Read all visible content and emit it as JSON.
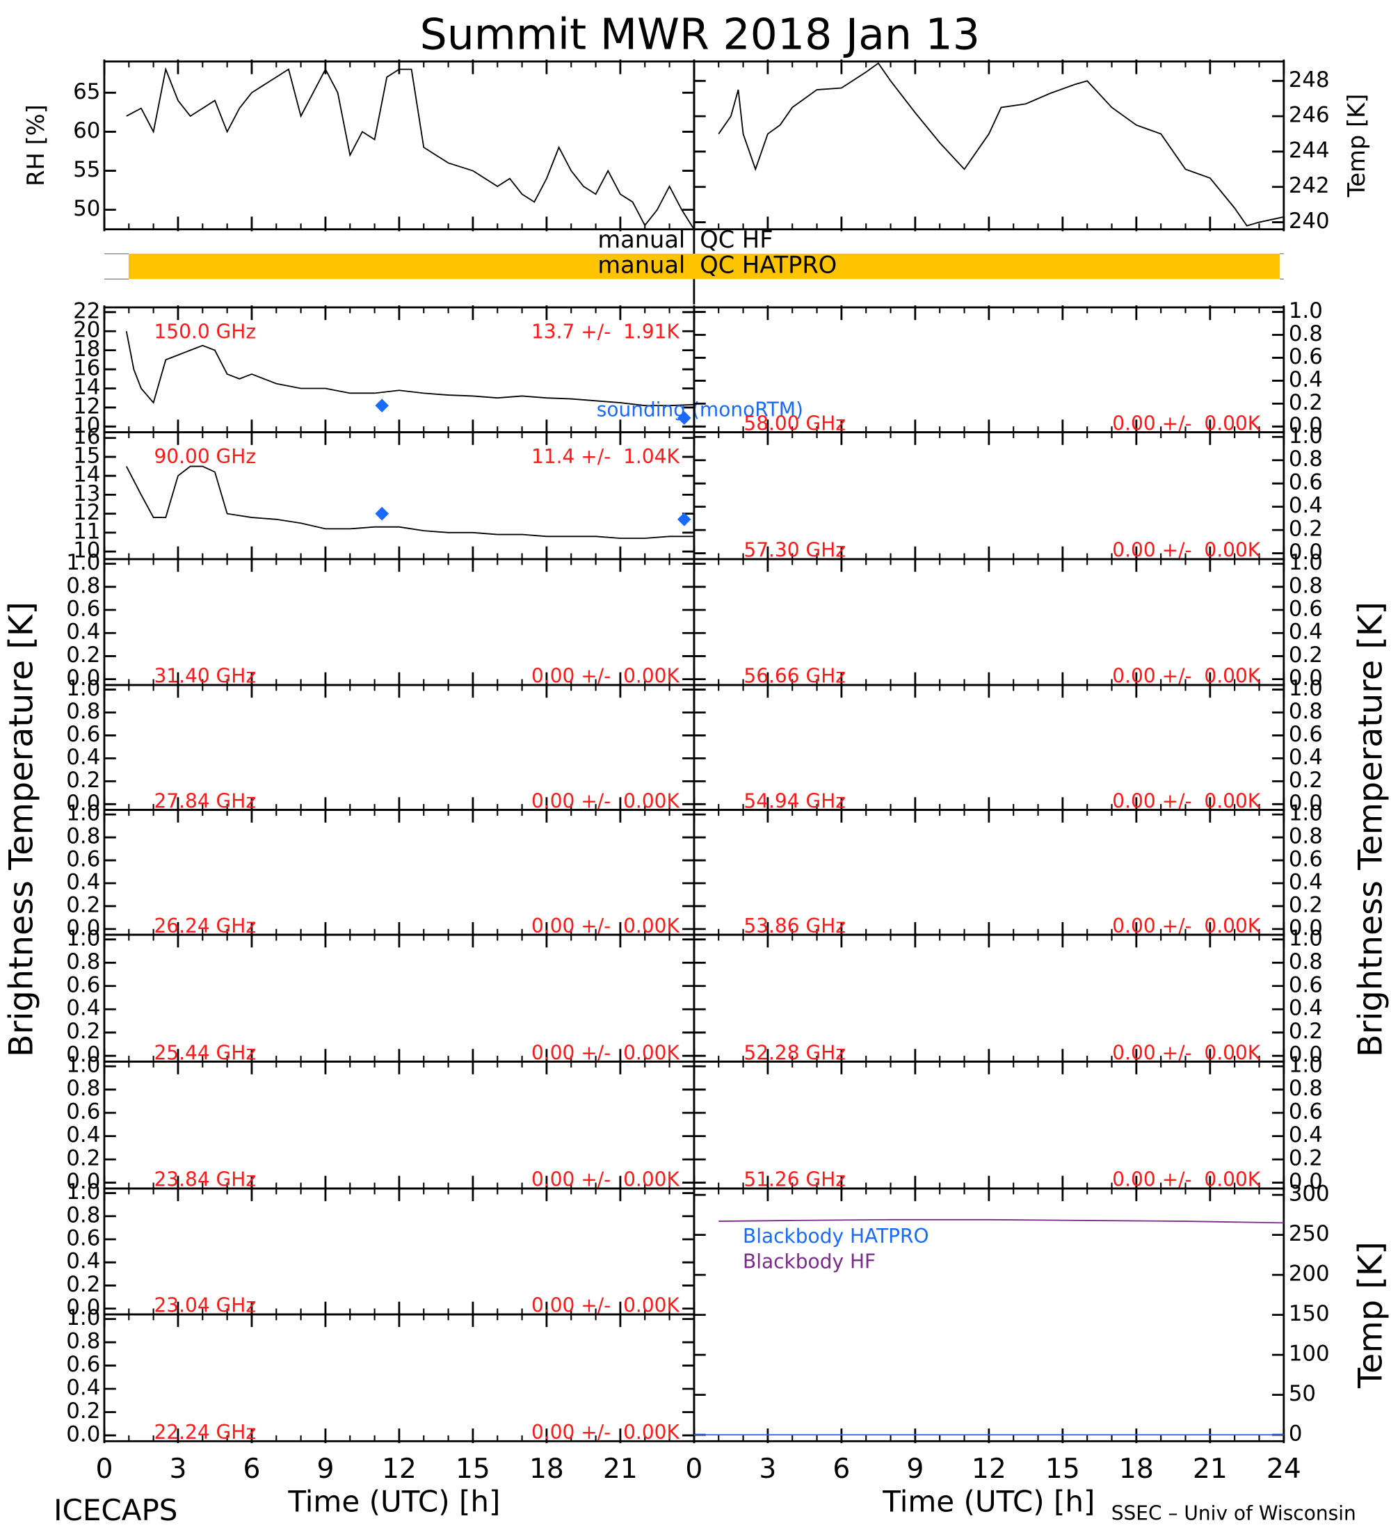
{
  "figure": {
    "title": "Summit MWR 2018 Jan 13",
    "ylabel_left": "Brightness Temperature [K]",
    "ylabel_right": "Brightness Temperature [K]",
    "footer_left": "ICECAPS",
    "footer_right": "SSEC – Univ of Wisconsin"
  },
  "qc": [
    {
      "source": "manual",
      "name": "QC HF"
    },
    {
      "source": "manual",
      "name": "QC HATPRO",
      "color": "#ffc400"
    }
  ],
  "chart_data": [
    {
      "type": "line",
      "ylabel": "RH [%]",
      "xlim": [
        0,
        24
      ],
      "xticks": [
        0,
        3,
        6,
        9,
        12,
        15,
        18,
        21,
        24
      ],
      "ylim": [
        47.5,
        69
      ],
      "yticks": [
        50,
        55,
        60,
        65
      ],
      "x": [
        0.9,
        1.5,
        2,
        2.5,
        3,
        3.5,
        4,
        4.5,
        5,
        5.5,
        6,
        6.5,
        7,
        7.5,
        8,
        8.5,
        9,
        9.5,
        10,
        10.5,
        11,
        11.5,
        12,
        12.5,
        13,
        13.5,
        14,
        15,
        15.5,
        16,
        16.5,
        17,
        17.5,
        18,
        18.5,
        19,
        19.5,
        20,
        20.5,
        21,
        21.5,
        22,
        22.5,
        23,
        23.5,
        24
      ],
      "series": [
        {
          "color": "#000000",
          "values": [
            62,
            63,
            60,
            68,
            64,
            62,
            63,
            64,
            60,
            63,
            65,
            66,
            67,
            68,
            62,
            65,
            68,
            65,
            57,
            60,
            59,
            67,
            68,
            68,
            58,
            57,
            56,
            55,
            54,
            53,
            54,
            52,
            51,
            54,
            58,
            55,
            53,
            52,
            55,
            52,
            51,
            48,
            50,
            53,
            50,
            47.5
          ]
        }
      ]
    },
    {
      "type": "line",
      "ylabel": "Temp [K]",
      "xlim": [
        0,
        24
      ],
      "xticks": [
        0,
        3,
        6,
        9,
        12,
        15,
        18,
        21,
        24
      ],
      "ylim": [
        239.6,
        249.1
      ],
      "yticks": [
        240,
        242,
        244,
        246,
        248
      ],
      "x": [
        1,
        1.5,
        1.8,
        2,
        2.5,
        3,
        3.5,
        4,
        5,
        6,
        7,
        7.5,
        8,
        9,
        10,
        11,
        11.5,
        12,
        12.5,
        13.5,
        14.5,
        15.5,
        16,
        17,
        18,
        19,
        20,
        21,
        22,
        22.5,
        23,
        24
      ],
      "series": [
        {
          "color": "#000000",
          "values": [
            245,
            246,
            247.5,
            245,
            243,
            245,
            245.5,
            246.5,
            247.5,
            247.6,
            248.5,
            249,
            248,
            246.2,
            244.5,
            243,
            244,
            245,
            246.5,
            246.7,
            247.3,
            247.8,
            248,
            246.5,
            245.5,
            245,
            243,
            242.5,
            240.8,
            239.8,
            240,
            240.3
          ]
        }
      ]
    },
    {
      "type": "line",
      "xlim": [
        0,
        24
      ],
      "xticks": [
        0,
        3,
        6,
        9,
        12,
        15,
        18,
        21,
        24
      ],
      "ylim": [
        9.4,
        22.5
      ],
      "yticks": [
        10,
        12,
        14,
        16,
        18,
        20,
        22
      ],
      "annotations": {
        "frequency": "150.0 GHz",
        "stats": "13.7 +/-  1.91K"
      },
      "x": [
        0.9,
        1.2,
        1.5,
        2,
        2.5,
        3,
        3.5,
        4,
        4.5,
        5,
        5.5,
        6,
        7,
        8,
        9,
        10,
        11,
        12,
        13,
        14,
        15,
        16,
        17,
        18,
        19,
        20,
        21,
        22,
        23,
        24
      ],
      "series": [
        {
          "color": "#000000",
          "values": [
            20,
            16,
            14,
            12.5,
            17,
            17.5,
            18,
            18.5,
            18,
            15.5,
            15,
            15.5,
            14.5,
            14,
            14,
            13.5,
            13.5,
            13.8,
            13.5,
            13.3,
            13.2,
            13,
            13.2,
            13,
            12.9,
            12.7,
            12.5,
            12.2,
            12.2,
            12.3
          ]
        }
      ],
      "markers": {
        "name": "sounding (monoRTM)",
        "color": "#1a6aff",
        "x": [
          11.3,
          23.6
        ],
        "values": [
          12.2,
          10.9
        ]
      }
    },
    {
      "type": "line",
      "xlim": [
        0,
        24
      ],
      "xticks": [
        0,
        3,
        6,
        9,
        12,
        15,
        18,
        21,
        24
      ],
      "ylim": [
        9.6,
        16.3
      ],
      "yticks": [
        10,
        11,
        12,
        13,
        14,
        15,
        16
      ],
      "annotations": {
        "frequency": "90.00 GHz",
        "stats": "11.4 +/-  1.04K"
      },
      "x": [
        0.9,
        1.5,
        2,
        2.5,
        3,
        3.5,
        4,
        4.5,
        5,
        6,
        7,
        8,
        9,
        10,
        11,
        12,
        13,
        14,
        15,
        16,
        17,
        18,
        19,
        20,
        21,
        22,
        23,
        24
      ],
      "series": [
        {
          "color": "#000000",
          "values": [
            14.5,
            13,
            11.8,
            11.8,
            14,
            14.5,
            14.5,
            14.2,
            12,
            11.8,
            11.7,
            11.5,
            11.2,
            11.2,
            11.3,
            11.3,
            11.1,
            11,
            11,
            10.9,
            10.9,
            10.8,
            10.8,
            10.8,
            10.7,
            10.7,
            10.8,
            10.8
          ]
        }
      ],
      "markers": {
        "color": "#1a6aff",
        "x": [
          11.3,
          23.6
        ],
        "values": [
          12.0,
          11.7
        ]
      }
    },
    {
      "type": "line",
      "xlim": [
        0,
        24
      ],
      "xticks": [
        0,
        3,
        6,
        9,
        12,
        15,
        18,
        21,
        24
      ],
      "ylim": [
        -0.05,
        1.04
      ],
      "yticks": [
        {
          "value": 0,
          "label": "0.0"
        },
        0.2,
        0.4,
        0.6,
        0.8,
        {
          "value": 1,
          "label": "1.0"
        }
      ],
      "annotations": {
        "frequency": "31.40 GHz",
        "stats": "0.00 +/-  0.00K"
      }
    },
    {
      "type": "line",
      "xlim": [
        0,
        24
      ],
      "xticks": [
        0,
        3,
        6,
        9,
        12,
        15,
        18,
        21,
        24
      ],
      "ylim": [
        -0.05,
        1.04
      ],
      "yticks": [
        {
          "value": 0,
          "label": "0.0"
        },
        0.2,
        0.4,
        0.6,
        0.8,
        {
          "value": 1,
          "label": "1.0"
        }
      ],
      "annotations": {
        "frequency": "27.84 GHz",
        "stats": "0.00 +/-  0.00K"
      }
    },
    {
      "type": "line",
      "xlim": [
        0,
        24
      ],
      "xticks": [
        0,
        3,
        6,
        9,
        12,
        15,
        18,
        21,
        24
      ],
      "ylim": [
        -0.05,
        1.04
      ],
      "yticks": [
        {
          "value": 0,
          "label": "0.0"
        },
        0.2,
        0.4,
        0.6,
        0.8,
        {
          "value": 1,
          "label": "1.0"
        }
      ],
      "annotations": {
        "frequency": "26.24 GHz",
        "stats": "0.00 +/-  0.00K"
      }
    },
    {
      "type": "line",
      "xlim": [
        0,
        24
      ],
      "xticks": [
        0,
        3,
        6,
        9,
        12,
        15,
        18,
        21,
        24
      ],
      "ylim": [
        -0.05,
        1.04
      ],
      "yticks": [
        {
          "value": 0,
          "label": "0.0"
        },
        0.2,
        0.4,
        0.6,
        0.8,
        {
          "value": 1,
          "label": "1.0"
        }
      ],
      "annotations": {
        "frequency": "25.44 GHz",
        "stats": "0.00 +/-  0.00K"
      }
    },
    {
      "type": "line",
      "xlim": [
        0,
        24
      ],
      "xticks": [
        0,
        3,
        6,
        9,
        12,
        15,
        18,
        21,
        24
      ],
      "ylim": [
        -0.05,
        1.04
      ],
      "yticks": [
        {
          "value": 0,
          "label": "0.0"
        },
        0.2,
        0.4,
        0.6,
        0.8,
        {
          "value": 1,
          "label": "1.0"
        }
      ],
      "annotations": {
        "frequency": "23.84 GHz",
        "stats": "0.00 +/-  0.00K"
      }
    },
    {
      "type": "line",
      "xlim": [
        0,
        24
      ],
      "xticks": [
        0,
        3,
        6,
        9,
        12,
        15,
        18,
        21,
        24
      ],
      "ylim": [
        -0.05,
        1.04
      ],
      "yticks": [
        {
          "value": 0,
          "label": "0.0"
        },
        0.2,
        0.4,
        0.6,
        0.8,
        {
          "value": 1,
          "label": "1.0"
        }
      ],
      "annotations": {
        "frequency": "23.04 GHz",
        "stats": "0.00 +/-  0.00K"
      }
    },
    {
      "type": "line",
      "xlabel": "Time (UTC) [h]",
      "xlim": [
        0,
        24
      ],
      "xticks": [
        0,
        3,
        6,
        9,
        12,
        15,
        18,
        21,
        24
      ],
      "ylim": [
        -0.05,
        1.04
      ],
      "yticks": [
        {
          "value": 0,
          "label": "0.0"
        },
        0.2,
        0.4,
        0.6,
        0.8,
        {
          "value": 1,
          "label": "1.0"
        }
      ],
      "annotations": {
        "frequency": "22.24 GHz",
        "stats": "0.00 +/-  0.00K"
      }
    },
    {
      "type": "line",
      "xlim": [
        0,
        24
      ],
      "xticks": [
        0,
        3,
        6,
        9,
        12,
        15,
        18,
        21,
        24
      ],
      "ylim": [
        -0.05,
        1.04
      ],
      "yticks": [
        {
          "value": 0,
          "label": "0.0"
        },
        0.2,
        0.4,
        0.6,
        0.8,
        {
          "value": 1,
          "label": "1.0"
        }
      ],
      "annotations": {
        "frequency": "58.00 GHz",
        "stats": "0.00 +/-  0.00K"
      }
    },
    {
      "type": "line",
      "xlim": [
        0,
        24
      ],
      "xticks": [
        0,
        3,
        6,
        9,
        12,
        15,
        18,
        21,
        24
      ],
      "ylim": [
        -0.05,
        1.04
      ],
      "yticks": [
        {
          "value": 0,
          "label": "0.0"
        },
        0.2,
        0.4,
        0.6,
        0.8,
        {
          "value": 1,
          "label": "1.0"
        }
      ],
      "annotations": {
        "frequency": "57.30 GHz",
        "stats": "0.00 +/-  0.00K"
      }
    },
    {
      "type": "line",
      "xlim": [
        0,
        24
      ],
      "xticks": [
        0,
        3,
        6,
        9,
        12,
        15,
        18,
        21,
        24
      ],
      "ylim": [
        -0.05,
        1.04
      ],
      "yticks": [
        {
          "value": 0,
          "label": "0.0"
        },
        0.2,
        0.4,
        0.6,
        0.8,
        {
          "value": 1,
          "label": "1.0"
        }
      ],
      "annotations": {
        "frequency": "56.66 GHz",
        "stats": "0.00 +/-  0.00K"
      }
    },
    {
      "type": "line",
      "xlim": [
        0,
        24
      ],
      "xticks": [
        0,
        3,
        6,
        9,
        12,
        15,
        18,
        21,
        24
      ],
      "ylim": [
        -0.05,
        1.04
      ],
      "yticks": [
        {
          "value": 0,
          "label": "0.0"
        },
        0.2,
        0.4,
        0.6,
        0.8,
        {
          "value": 1,
          "label": "1.0"
        }
      ],
      "annotations": {
        "frequency": "54.94 GHz",
        "stats": "0.00 +/-  0.00K"
      }
    },
    {
      "type": "line",
      "xlim": [
        0,
        24
      ],
      "xticks": [
        0,
        3,
        6,
        9,
        12,
        15,
        18,
        21,
        24
      ],
      "ylim": [
        -0.05,
        1.04
      ],
      "yticks": [
        {
          "value": 0,
          "label": "0.0"
        },
        0.2,
        0.4,
        0.6,
        0.8,
        {
          "value": 1,
          "label": "1.0"
        }
      ],
      "annotations": {
        "frequency": "53.86 GHz",
        "stats": "0.00 +/-  0.00K"
      }
    },
    {
      "type": "line",
      "xlim": [
        0,
        24
      ],
      "xticks": [
        0,
        3,
        6,
        9,
        12,
        15,
        18,
        21,
        24
      ],
      "ylim": [
        -0.05,
        1.04
      ],
      "yticks": [
        {
          "value": 0,
          "label": "0.0"
        },
        0.2,
        0.4,
        0.6,
        0.8,
        {
          "value": 1,
          "label": "1.0"
        }
      ],
      "annotations": {
        "frequency": "52.28 GHz",
        "stats": "0.00 +/-  0.00K"
      }
    },
    {
      "type": "line",
      "xlim": [
        0,
        24
      ],
      "xticks": [
        0,
        3,
        6,
        9,
        12,
        15,
        18,
        21,
        24
      ],
      "ylim": [
        -0.05,
        1.04
      ],
      "yticks": [
        {
          "value": 0,
          "label": "0.0"
        },
        0.2,
        0.4,
        0.6,
        0.8,
        {
          "value": 1,
          "label": "1.0"
        }
      ],
      "annotations": {
        "frequency": "51.26 GHz",
        "stats": "0.00 +/-  0.00K"
      }
    },
    {
      "type": "line",
      "xlabel": "Time (UTC) [h]",
      "ylabel": "Temp [K]",
      "legend": "upper left",
      "xlim": [
        0,
        24
      ],
      "xticks": [
        0,
        3,
        6,
        9,
        12,
        15,
        18,
        21,
        24
      ],
      "ylim": [
        -8,
        308
      ],
      "yticks": [
        0,
        50,
        100,
        150,
        200,
        250,
        300
      ],
      "series": [
        {
          "name": "Blackbody HATPRO",
          "color": "#1a6aff",
          "x": [
            0,
            24
          ],
          "values": [
            0,
            0
          ]
        },
        {
          "name": "Blackbody HF",
          "color": "#7b2a8c",
          "x": [
            1,
            4,
            8,
            12,
            16,
            20,
            24
          ],
          "values": [
            267,
            268,
            269,
            269,
            268,
            267,
            265
          ]
        }
      ]
    }
  ]
}
